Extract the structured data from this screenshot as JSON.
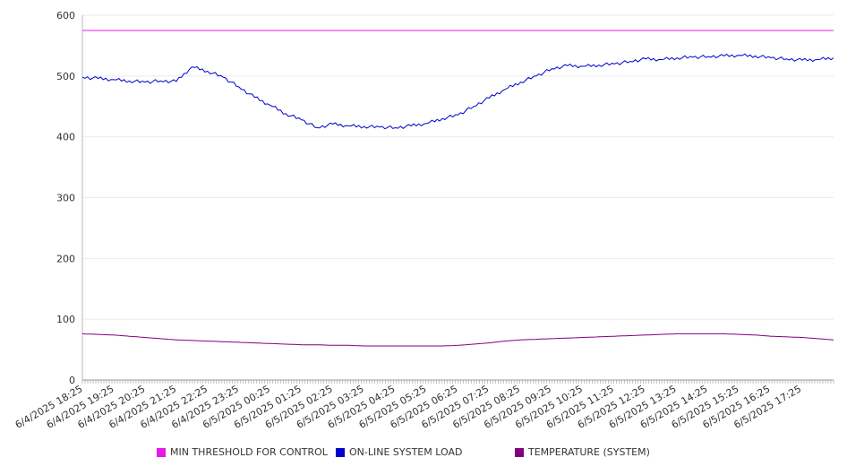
{
  "chart_data": {
    "type": "line",
    "title": "",
    "xlabel": "",
    "ylabel": "",
    "ylim": [
      0,
      600
    ],
    "y_ticks": [
      0,
      100,
      200,
      300,
      400,
      500,
      600
    ],
    "grid": "horizontal",
    "legend_position": "bottom",
    "x_tick_labels": [
      "6/4/2025 18:25",
      "6/4/2025 19:25",
      "6/4/2025 20:25",
      "6/4/2025 21:25",
      "6/4/2025 22:25",
      "6/4/2025 23:25",
      "6/5/2025 00:25",
      "6/5/2025 01:25",
      "6/5/2025 02:25",
      "6/5/2025 03:25",
      "6/5/2025 04:25",
      "6/5/2025 05:25",
      "6/5/2025 06:25",
      "6/5/2025 07:25",
      "6/5/2025 08:25",
      "6/5/2025 09:25",
      "6/5/2025 10:25",
      "6/5/2025 11:25",
      "6/5/2025 12:25",
      "6/5/2025 13:25",
      "6/5/2025 14:25",
      "6/5/2025 15:25",
      "6/5/2025 16:25",
      "6/5/2025 17:25"
    ],
    "x": [
      "6/4/2025 18:25",
      "6/4/2025 18:55",
      "6/4/2025 19:25",
      "6/4/2025 19:55",
      "6/4/2025 20:25",
      "6/4/2025 20:55",
      "6/4/2025 21:25",
      "6/4/2025 21:55",
      "6/4/2025 22:25",
      "6/4/2025 22:55",
      "6/4/2025 23:25",
      "6/4/2025 23:55",
      "6/5/2025 00:25",
      "6/5/2025 00:55",
      "6/5/2025 01:25",
      "6/5/2025 01:55",
      "6/5/2025 02:25",
      "6/5/2025 02:55",
      "6/5/2025 03:25",
      "6/5/2025 03:55",
      "6/5/2025 04:25",
      "6/5/2025 04:55",
      "6/5/2025 05:25",
      "6/5/2025 05:55",
      "6/5/2025 06:25",
      "6/5/2025 06:55",
      "6/5/2025 07:25",
      "6/5/2025 07:55",
      "6/5/2025 08:25",
      "6/5/2025 08:55",
      "6/5/2025 09:25",
      "6/5/2025 09:55",
      "6/5/2025 10:25",
      "6/5/2025 10:55",
      "6/5/2025 11:25",
      "6/5/2025 11:55",
      "6/5/2025 12:25",
      "6/5/2025 12:55",
      "6/5/2025 13:25",
      "6/5/2025 13:55",
      "6/5/2025 14:25",
      "6/5/2025 14:55",
      "6/5/2025 15:25",
      "6/5/2025 15:55",
      "6/5/2025 16:25",
      "6/5/2025 16:55",
      "6/5/2025 17:25",
      "6/5/2025 17:55",
      "6/5/2025 18:15"
    ],
    "series": [
      {
        "name": "MIN THRESHOLD FOR CONTROL",
        "color": "#e619e6",
        "values": [
          575,
          575,
          575,
          575,
          575,
          575,
          575,
          575,
          575,
          575,
          575,
          575,
          575,
          575,
          575,
          575,
          575,
          575,
          575,
          575,
          575,
          575,
          575,
          575,
          575,
          575,
          575,
          575,
          575,
          575,
          575,
          575,
          575,
          575,
          575,
          575,
          575,
          575,
          575,
          575,
          575,
          575,
          575,
          575,
          575,
          575,
          575,
          575,
          575
        ]
      },
      {
        "name": "ON-LINE SYSTEM LOAD",
        "color": "#0000cc",
        "values": [
          498,
          496,
          494,
          492,
          490,
          492,
          491,
          515,
          508,
          498,
          482,
          465,
          452,
          438,
          428,
          415,
          421,
          418,
          417,
          416,
          415,
          418,
          422,
          430,
          436,
          450,
          464,
          478,
          490,
          500,
          512,
          517,
          516,
          518,
          520,
          524,
          528,
          527,
          530,
          531,
          532,
          533,
          534,
          533,
          530,
          528,
          526,
          527,
          530
        ]
      },
      {
        "name": "TEMPERATURE (SYSTEM)",
        "color": "#800080",
        "values": [
          76,
          75,
          74,
          72,
          70,
          68,
          66,
          65,
          64,
          63,
          62,
          61,
          60,
          59,
          58,
          58,
          57,
          57,
          56,
          56,
          56,
          56,
          56,
          56,
          57,
          59,
          61,
          64,
          66,
          67,
          68,
          69,
          70,
          71,
          72,
          73,
          74,
          75,
          76,
          76,
          76,
          76,
          75,
          74,
          72,
          71,
          70,
          68,
          66
        ]
      }
    ]
  }
}
